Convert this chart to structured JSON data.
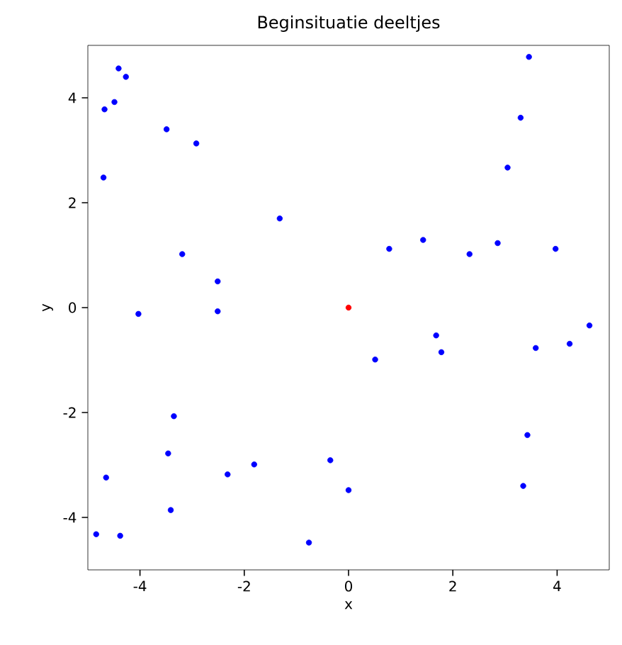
{
  "chart_data": {
    "type": "scatter",
    "title": "Beginsituatie deeltjes",
    "xlabel": "x",
    "ylabel": "y",
    "xlim": [
      -5,
      5
    ],
    "ylim": [
      -5,
      5
    ],
    "xticks": [
      -4,
      -2,
      0,
      2,
      4
    ],
    "yticks": [
      -4,
      -2,
      0,
      2,
      4
    ],
    "marker": "circle",
    "grid": false,
    "series": [
      {
        "color": "#0000ff",
        "x": [
          -4.41,
          -4.27,
          -4.49,
          -4.68,
          -3.49,
          -2.92,
          -4.7,
          -1.32,
          -3.19,
          -2.51,
          -2.51,
          -4.03,
          3.46,
          3.3,
          3.05,
          0.78,
          1.43,
          2.32,
          2.86,
          3.97,
          1.68,
          1.78,
          0.51,
          3.59,
          4.24,
          4.62,
          3.43,
          3.35,
          0.0,
          -3.35,
          -3.46,
          -4.65,
          -2.32,
          -1.81,
          -0.35,
          -3.41,
          -4.84,
          -4.38,
          -0.76
        ],
        "values": [
          4.56,
          4.4,
          3.92,
          3.78,
          3.4,
          3.13,
          2.48,
          1.7,
          1.02,
          0.5,
          -0.07,
          -0.12,
          4.78,
          3.62,
          2.67,
          1.12,
          1.29,
          1.02,
          1.23,
          1.12,
          -0.53,
          -0.85,
          -0.99,
          -0.77,
          -0.69,
          -0.34,
          -2.43,
          -3.4,
          -3.48,
          -2.07,
          -2.78,
          -3.24,
          -3.18,
          -2.99,
          -2.91,
          -3.86,
          -4.32,
          -4.35,
          -4.48
        ]
      },
      {
        "color": "#ff0000",
        "x": [
          0.0
        ],
        "values": [
          0.0
        ]
      }
    ]
  }
}
